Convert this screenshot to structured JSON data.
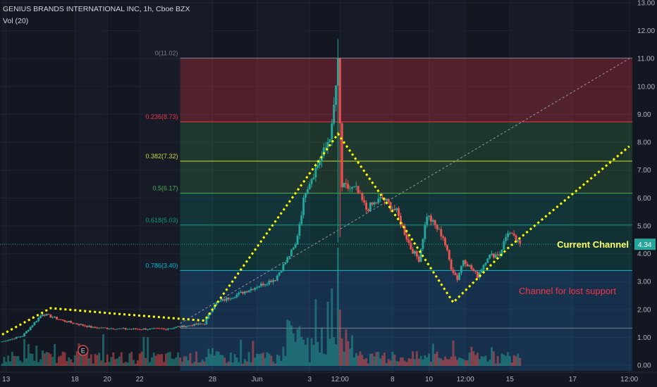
{
  "header": {
    "symbol_line": "GENIUS BRANDS INTERNATIONAL INC, 1h, Cboe BZX",
    "volume_line": "Vol (20)"
  },
  "colors": {
    "background": "#131722",
    "bull": "#26a69a",
    "bear": "#ef5350",
    "pattern": "#ffff00",
    "current_channel_text": "#ffff66",
    "lost_support_text": "#f23645"
  },
  "chart_data": {
    "type": "candlestick",
    "title": "GENIUS BRANDS INTERNATIONAL INC, 1h, Cboe BZX",
    "y_axis": {
      "range": [
        -0.2,
        13.0
      ],
      "ticks": [
        "13.00",
        "12.00",
        "11.00",
        "10.00",
        "9.00",
        "8.00",
        "7.00",
        "6.00",
        "5.00",
        "4.00",
        "3.00",
        "2.00",
        "1.00",
        "0.00"
      ],
      "tick_values": [
        13,
        12,
        11,
        10,
        9,
        8,
        7,
        6,
        5,
        4,
        3,
        2,
        1,
        0
      ],
      "position": "right"
    },
    "x_axis": {
      "ticks": [
        "13",
        "18",
        "20",
        "22",
        "28",
        "Jun",
        "3",
        "12:00",
        "8",
        "10",
        "12:00",
        "15",
        "17",
        "12:00"
      ],
      "tick_index": [
        2,
        36,
        52,
        68,
        104,
        126,
        152,
        167,
        193,
        211,
        229,
        251,
        282,
        310
      ]
    },
    "last_price": "4.34",
    "last_price_value": 4.34,
    "fibonacci_levels": [
      {
        "label": "0(11.02)",
        "value": 11.02,
        "color": "#787b86"
      },
      {
        "label": "0.236(8.73)",
        "value": 8.73,
        "color": "#f23645"
      },
      {
        "label": "0.382(7.32)",
        "value": 7.32,
        "color": "#cddc39"
      },
      {
        "label": "0.5(6.17)",
        "value": 6.17,
        "color": "#4caf50"
      },
      {
        "label": "0.618(5.03)",
        "value": 5.03,
        "color": "#089981"
      },
      {
        "label": "0.786(3.40)",
        "value": 3.4,
        "color": "#00bcd4"
      },
      {
        "label": "",
        "value": 1.33,
        "color": "#787b86"
      }
    ],
    "fibonacci_range_index": [
      88,
      313
    ],
    "pattern_path_index": [
      {
        "i": 0,
        "v": 1.1
      },
      {
        "i": 24,
        "v": 2.05
      },
      {
        "i": 56,
        "v": 1.85
      },
      {
        "i": 100,
        "v": 1.6
      },
      {
        "i": 166,
        "v": 8.3
      },
      {
        "i": 200,
        "v": 4.8
      },
      {
        "i": 223,
        "v": 2.25
      },
      {
        "i": 250,
        "v": 4.2
      },
      {
        "i": 310,
        "v": 7.85
      }
    ],
    "trend_line_index": [
      {
        "i": 88,
        "v": 1.5
      },
      {
        "i": 310,
        "v": 11.0
      }
    ],
    "annotations": [
      {
        "text": "Current Channel",
        "value": 4.22
      },
      {
        "text": "Channel for lost support",
        "value": 2.55
      }
    ],
    "earnings_marker": {
      "label": "E",
      "index": 40
    },
    "candle_anchors": [
      {
        "i": 0,
        "v": 0.85
      },
      {
        "i": 10,
        "v": 1.05
      },
      {
        "i": 20,
        "v": 1.85
      },
      {
        "i": 30,
        "v": 1.6
      },
      {
        "i": 45,
        "v": 1.35
      },
      {
        "i": 60,
        "v": 1.3
      },
      {
        "i": 80,
        "v": 1.3
      },
      {
        "i": 100,
        "v": 1.5
      },
      {
        "i": 105,
        "v": 2.2
      },
      {
        "i": 115,
        "v": 2.5
      },
      {
        "i": 135,
        "v": 3.1
      },
      {
        "i": 145,
        "v": 4.3
      },
      {
        "i": 150,
        "v": 6.3
      },
      {
        "i": 160,
        "v": 7.8
      },
      {
        "i": 163,
        "v": 8.5
      },
      {
        "i": 166,
        "v": 10.8
      },
      {
        "i": 168,
        "v": 6.4
      },
      {
        "i": 175,
        "v": 6.3
      },
      {
        "i": 180,
        "v": 5.6
      },
      {
        "i": 188,
        "v": 6.0
      },
      {
        "i": 195,
        "v": 5.5
      },
      {
        "i": 202,
        "v": 4.2
      },
      {
        "i": 206,
        "v": 3.8
      },
      {
        "i": 210,
        "v": 5.4
      },
      {
        "i": 216,
        "v": 4.8
      },
      {
        "i": 218,
        "v": 4.6
      },
      {
        "i": 222,
        "v": 3.5
      },
      {
        "i": 225,
        "v": 3.1
      },
      {
        "i": 228,
        "v": 3.8
      },
      {
        "i": 235,
        "v": 3.2
      },
      {
        "i": 240,
        "v": 3.9
      },
      {
        "i": 246,
        "v": 4.0
      },
      {
        "i": 250,
        "v": 4.8
      },
      {
        "i": 256,
        "v": 4.3
      }
    ]
  }
}
